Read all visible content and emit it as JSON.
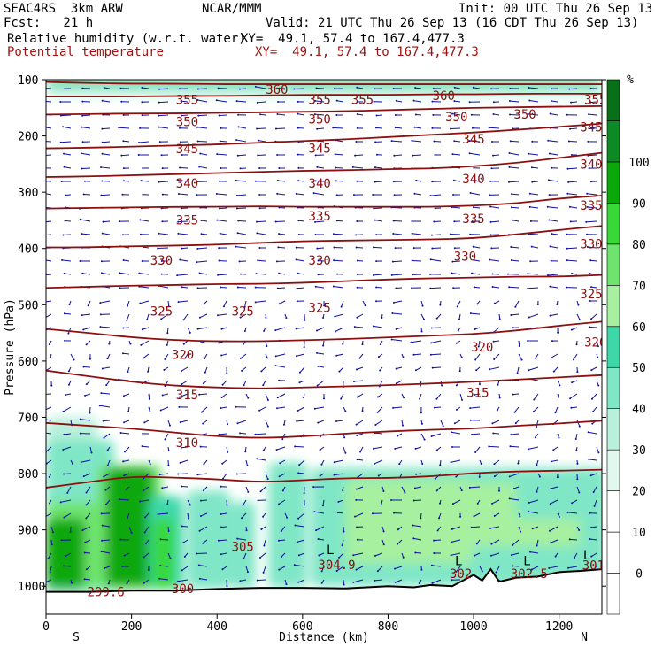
{
  "header": {
    "model": "SEAC4RS  3km ARW",
    "org": "NCAR/MMM",
    "init": "Init: 00 UTC Thu 26 Sep 13",
    "fcst": "Fcst:   21 h",
    "valid": "Valid: 21 UTC Thu 26 Sep 13 (16 CDT Thu 26 Sep 13)",
    "field1": "Relative humidity (w.r.t. water)",
    "field1_xy": "XY=  49.1, 57.4 to 167.4,477.3",
    "field2": "Potential temperature",
    "field2_xy": "XY=  49.1, 57.4 to 167.4,477.3"
  },
  "chart_data": {
    "type": "heatmap",
    "xlabel": "Distance (km)",
    "ylabel": "Pressure (hPa)",
    "xlim": [
      0,
      1300
    ],
    "ylim": [
      1050,
      100
    ],
    "x_ticks": [
      0,
      200,
      400,
      600,
      800,
      1000,
      1200
    ],
    "y_ticks": [
      100,
      200,
      300,
      400,
      500,
      600,
      700,
      800,
      900,
      1000
    ],
    "end_labels": {
      "left": "S",
      "right": "N"
    },
    "colorbar": {
      "unit": "%",
      "ticks": [
        0,
        10,
        20,
        30,
        40,
        50,
        60,
        70,
        80,
        90,
        100
      ],
      "colors": [
        "#ffffff",
        "#ffffff",
        "#ffffff",
        "#e0f8ee",
        "#b8f0dc",
        "#7fe6c6",
        "#3ed8a8",
        "#a6f0a0",
        "#6ee46e",
        "#38d838",
        "#0aa80a",
        "#0e8a24",
        "#087018"
      ]
    },
    "theta_contours": [
      {
        "value": 360,
        "p": [
          104,
          106,
          107,
          107,
          108,
          108,
          108,
          108,
          108,
          108,
          108,
          108,
          108,
          108
        ]
      },
      {
        "value": 355,
        "p": [
          130,
          130,
          130,
          129,
          129,
          128,
          127,
          127,
          127,
          126,
          126,
          125,
          125,
          125
        ]
      },
      {
        "value": 350,
        "p": [
          162,
          161,
          160,
          160,
          159,
          158,
          157,
          156,
          154,
          152,
          150,
          149,
          148,
          147
        ]
      },
      {
        "value": 345,
        "p": [
          222,
          221,
          219,
          217,
          215,
          212,
          209,
          206,
          202,
          198,
          194,
          189,
          184,
          178
        ]
      },
      {
        "value": 340,
        "p": [
          273,
          272,
          270,
          268,
          266,
          264,
          262,
          261,
          259,
          258,
          254,
          248,
          239,
          230
        ]
      },
      {
        "value": 335,
        "p": [
          329,
          328,
          327,
          326,
          326,
          325,
          326,
          326,
          326,
          326,
          324,
          320,
          311,
          306
        ]
      },
      {
        "value": 330,
        "p": [
          398,
          398,
          396,
          395,
          393,
          390,
          387,
          386,
          385,
          384,
          382,
          375,
          367,
          360
        ]
      },
      {
        "value": 325,
        "p": [
          470,
          468,
          466,
          465,
          463,
          463,
          461,
          458,
          455,
          453,
          452,
          450,
          450,
          447
        ]
      },
      {
        "value": 320,
        "p": [
          543,
          550,
          558,
          563,
          565,
          565,
          563,
          561,
          558,
          555,
          552,
          546,
          537,
          530
        ]
      },
      {
        "value": 315,
        "p": [
          617,
          627,
          637,
          644,
          647,
          649,
          647,
          645,
          643,
          640,
          637,
          633,
          629,
          625
        ]
      },
      {
        "value": 310,
        "p": [
          710,
          715,
          720,
          727,
          734,
          737,
          734,
          729,
          725,
          722,
          720,
          715,
          711,
          706
        ]
      },
      {
        "value": 305,
        "p": [
          825,
          815,
          805,
          807,
          810,
          815,
          812,
          808,
          808,
          805,
          799,
          796,
          795,
          793
        ]
      }
    ],
    "contour_labels": [
      {
        "text": "360",
        "x": 540,
        "p": 117
      },
      {
        "text": "360",
        "x": 930,
        "p": 128
      },
      {
        "text": "355",
        "x": 330,
        "p": 135
      },
      {
        "text": "355",
        "x": 640,
        "p": 135
      },
      {
        "text": "355",
        "x": 740,
        "p": 135
      },
      {
        "text": "355",
        "x": 1285,
        "p": 135
      },
      {
        "text": "350",
        "x": 330,
        "p": 175
      },
      {
        "text": "350",
        "x": 640,
        "p": 170
      },
      {
        "text": "350",
        "x": 960,
        "p": 166
      },
      {
        "text": "350",
        "x": 1120,
        "p": 161
      },
      {
        "text": "345",
        "x": 330,
        "p": 223
      },
      {
        "text": "345",
        "x": 640,
        "p": 222
      },
      {
        "text": "345",
        "x": 1000,
        "p": 205
      },
      {
        "text": "345",
        "x": 1275,
        "p": 184
      },
      {
        "text": "340",
        "x": 330,
        "p": 284
      },
      {
        "text": "340",
        "x": 640,
        "p": 284
      },
      {
        "text": "340",
        "x": 1000,
        "p": 276
      },
      {
        "text": "340",
        "x": 1275,
        "p": 250
      },
      {
        "text": "335",
        "x": 330,
        "p": 349
      },
      {
        "text": "335",
        "x": 640,
        "p": 342
      },
      {
        "text": "335",
        "x": 1000,
        "p": 347
      },
      {
        "text": "335",
        "x": 1275,
        "p": 323
      },
      {
        "text": "330",
        "x": 270,
        "p": 421
      },
      {
        "text": "330",
        "x": 640,
        "p": 421
      },
      {
        "text": "330",
        "x": 980,
        "p": 414
      },
      {
        "text": "330",
        "x": 1275,
        "p": 392
      },
      {
        "text": "325",
        "x": 270,
        "p": 511
      },
      {
        "text": "325",
        "x": 460,
        "p": 511
      },
      {
        "text": "325",
        "x": 640,
        "p": 505
      },
      {
        "text": "325",
        "x": 1275,
        "p": 481
      },
      {
        "text": "320",
        "x": 320,
        "p": 588
      },
      {
        "text": "320",
        "x": 1020,
        "p": 575
      },
      {
        "text": "320",
        "x": 1285,
        "p": 566
      },
      {
        "text": "315",
        "x": 330,
        "p": 660
      },
      {
        "text": "315",
        "x": 1010,
        "p": 656
      },
      {
        "text": "310",
        "x": 330,
        "p": 745
      },
      {
        "text": "305",
        "x": 460,
        "p": 930
      },
      {
        "text": "304.9",
        "x": 680,
        "p": 962
      },
      {
        "text": "302",
        "x": 970,
        "p": 978
      },
      {
        "text": "302.5",
        "x": 1130,
        "p": 978
      },
      {
        "text": "301",
        "x": 1280,
        "p": 963
      },
      {
        "text": "299.6",
        "x": 140,
        "p": 1010
      },
      {
        "text": "300",
        "x": 320,
        "p": 1004
      }
    ],
    "low_markers": [
      {
        "text": "L",
        "x": 665,
        "p": 935
      },
      {
        "text": "L",
        "x": 965,
        "p": 955
      },
      {
        "text": "L",
        "x": 1125,
        "p": 955
      },
      {
        "text": "L",
        "x": 1265,
        "p": 945
      }
    ],
    "terrain": {
      "x": [
        0,
        100,
        200,
        300,
        400,
        500,
        600,
        700,
        800,
        860,
        900,
        950,
        1000,
        1020,
        1040,
        1060,
        1100,
        1150,
        1200,
        1250,
        1300
      ],
      "p": [
        1010,
        1010,
        1008,
        1008,
        1005,
        1003,
        1003,
        1004,
        1000,
        1002,
        998,
        1000,
        980,
        990,
        970,
        992,
        985,
        983,
        975,
        973,
        970
      ]
    },
    "humidity_blobs": [
      {
        "x": 0,
        "w": 120,
        "p1": 700,
        "p2": 1010,
        "rh": 30
      },
      {
        "x": 0,
        "w": 1300,
        "p1": 104,
        "p2": 128,
        "rh": 30
      },
      {
        "x": 0,
        "w": 1300,
        "p1": 100,
        "p2": 112,
        "rh": 50
      },
      {
        "x": 0,
        "w": 1300,
        "p1": 100,
        "p2": 104,
        "rh": 90
      },
      {
        "x": 0,
        "w": 160,
        "p1": 740,
        "p2": 1010,
        "rh": 45
      },
      {
        "x": 0,
        "w": 120,
        "p1": 850,
        "p2": 1005,
        "rh": 70
      },
      {
        "x": 0,
        "w": 90,
        "p1": 880,
        "p2": 1005,
        "rh": 90
      },
      {
        "x": 120,
        "w": 150,
        "p1": 785,
        "p2": 1005,
        "rh": 70
      },
      {
        "x": 140,
        "w": 110,
        "p1": 790,
        "p2": 1000,
        "rh": 95
      },
      {
        "x": 240,
        "w": 80,
        "p1": 840,
        "p2": 1005,
        "rh": 55
      },
      {
        "x": 250,
        "w": 50,
        "p1": 880,
        "p2": 1005,
        "rh": 85
      },
      {
        "x": 330,
        "w": 100,
        "p1": 830,
        "p2": 1005,
        "rh": 45
      },
      {
        "x": 430,
        "w": 60,
        "p1": 850,
        "p2": 1003,
        "rh": 40
      },
      {
        "x": 520,
        "w": 90,
        "p1": 780,
        "p2": 1003,
        "rh": 45
      },
      {
        "x": 620,
        "w": 690,
        "p1": 790,
        "p2": 1000,
        "rh": 40
      },
      {
        "x": 700,
        "w": 300,
        "p1": 810,
        "p2": 960,
        "rh": 60
      },
      {
        "x": 950,
        "w": 300,
        "p1": 815,
        "p2": 930,
        "rh": 65
      },
      {
        "x": 1100,
        "w": 200,
        "p1": 790,
        "p2": 880,
        "rh": 40
      }
    ]
  }
}
